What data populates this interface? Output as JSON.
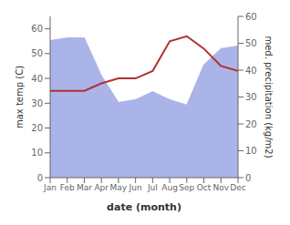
{
  "chart_data": {
    "type": "line",
    "xlabel": "date (month)",
    "ylabel": "max temp (C)",
    "y2label": "med. precipitation (kg/m2)",
    "categories": [
      "Jan",
      "Feb",
      "Mar",
      "Apr",
      "May",
      "Jun",
      "Jul",
      "Aug",
      "Sep",
      "Oct",
      "Nov",
      "Dec"
    ],
    "series": [
      {
        "type": "area",
        "axis": "y2",
        "color": "#aab4e8",
        "values": [
          51,
          52,
          52,
          38,
          28,
          29,
          32,
          29,
          27,
          42,
          48,
          49
        ]
      },
      {
        "type": "line",
        "axis": "y",
        "color": "#b03030",
        "values": [
          35,
          35,
          35,
          38,
          40,
          40,
          43,
          55,
          57,
          52,
          45,
          43
        ]
      }
    ],
    "ylim": [
      0,
      65
    ],
    "yticks": [
      0,
      10,
      20,
      30,
      40,
      50,
      60
    ],
    "y2lim": [
      0,
      60
    ],
    "y2ticks": [
      0,
      10,
      20,
      30,
      40,
      50,
      60
    ],
    "grid": false
  }
}
